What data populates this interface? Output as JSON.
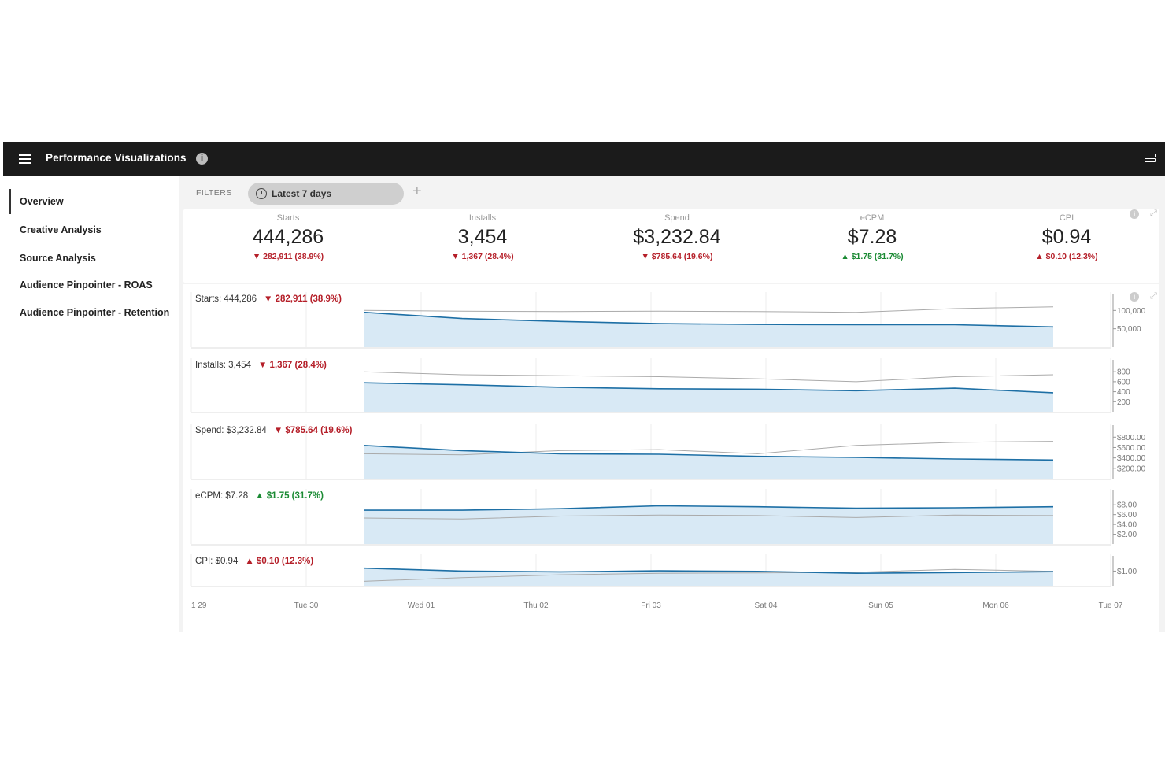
{
  "topbar": {
    "title": "Performance Visualizations",
    "info": "i"
  },
  "sidebar": {
    "items": [
      {
        "label": "Overview",
        "active": true
      },
      {
        "label": "Creative Analysis",
        "active": false
      },
      {
        "label": "Source Analysis",
        "active": false
      },
      {
        "label": "Audience Pinpointer - ROAS",
        "active": false
      },
      {
        "label": "Audience Pinpointer - Retention",
        "active": false
      }
    ]
  },
  "filters": {
    "label": "FILTERS",
    "date_range": "Latest 7 days",
    "add": "+"
  },
  "kpis": [
    {
      "label": "Starts",
      "value": "444,286",
      "delta": "▼ 282,911 (38.9%)",
      "dir": "down"
    },
    {
      "label": "Installs",
      "value": "3,454",
      "delta": "▼ 1,367 (28.4%)",
      "dir": "down"
    },
    {
      "label": "Spend",
      "value": "$3,232.84",
      "delta": "▼ $785.64 (19.6%)",
      "dir": "down"
    },
    {
      "label": "eCPM",
      "value": "$7.28",
      "delta": "▲ $1.75 (31.7%)",
      "dir": "up"
    },
    {
      "label": "CPI",
      "value": "$0.94",
      "delta": "▲ $0.10 (12.3%)",
      "dir": "down"
    }
  ],
  "colors": {
    "current_line": "#1d6fa5",
    "current_fill": "#d8e9f5",
    "previous_line": "#aaaaaa",
    "negative": "#b51f29",
    "positive": "#1a8a33"
  },
  "chart_data": {
    "type": "area",
    "x_ticks": [
      "1 29",
      "Tue 30",
      "Wed 01",
      "Thu 02",
      "Fri 03",
      "Sat 04",
      "Sun 05",
      "Mon 06",
      "Tue 07"
    ],
    "x_dates": [
      "Wed 01",
      "Thu 02",
      "Fri 03",
      "Sat 04",
      "Sun 05",
      "Mon 06",
      "Tue 07"
    ],
    "panels": [
      {
        "label": "Starts: 444,286",
        "delta": "▼ 282,911 (38.9%)",
        "dir": "down",
        "y_ticks": [
          "100,000",
          "50,000"
        ],
        "y_tick_values": [
          100000,
          50000
        ],
        "ymax": 120000,
        "current": [
          95000,
          78000,
          70000,
          64000,
          62000,
          61000,
          61000,
          55000
        ],
        "previous": [
          100000,
          98000,
          97000,
          98000,
          97000,
          95000,
          105000,
          110000
        ]
      },
      {
        "label": "Installs: 3,454",
        "delta": "▼ 1,367 (28.4%)",
        "dir": "down",
        "y_ticks": [
          "800",
          "600",
          "400",
          "200"
        ],
        "y_tick_values": [
          800,
          600,
          400,
          200
        ],
        "ymax": 850,
        "current": [
          580,
          540,
          490,
          460,
          450,
          420,
          470,
          380
        ],
        "previous": [
          800,
          740,
          720,
          700,
          660,
          600,
          700,
          740
        ]
      },
      {
        "label": "Spend: $3,232.84",
        "delta": "▼ $785.64 (19.6%)",
        "dir": "down",
        "y_ticks": [
          "$800.00",
          "$600.00",
          "$400.00",
          "$200.00"
        ],
        "y_tick_values": [
          800,
          600,
          400,
          200
        ],
        "ymax": 850,
        "current": [
          640,
          540,
          480,
          470,
          430,
          410,
          380,
          360
        ],
        "previous": [
          480,
          460,
          540,
          560,
          480,
          640,
          700,
          720
        ]
      },
      {
        "label": "eCPM: $7.28",
        "delta": "▲ $1.75 (31.7%)",
        "dir": "up",
        "y_ticks": [
          "$8.00",
          "$6.00",
          "$4.00",
          "$2.00"
        ],
        "y_tick_values": [
          8,
          6,
          4,
          2
        ],
        "ymax": 9,
        "current": [
          6.9,
          6.9,
          7.2,
          7.8,
          7.6,
          7.3,
          7.4,
          7.6
        ],
        "previous": [
          5.3,
          5.1,
          5.7,
          5.9,
          5.8,
          5.4,
          5.9,
          5.8
        ]
      },
      {
        "label": "CPI: $0.94",
        "delta": "▲ $0.10 (12.3%)",
        "dir": "down",
        "y_ticks": [
          "$1.00"
        ],
        "y_tick_values": [
          1.0
        ],
        "ymax": 1.4,
        "current": [
          1.2,
          1.0,
          0.95,
          1.02,
          0.98,
          0.85,
          0.9,
          0.96
        ],
        "previous": [
          0.3,
          0.55,
          0.75,
          0.85,
          0.88,
          0.92,
          1.12,
          0.98
        ]
      }
    ]
  }
}
